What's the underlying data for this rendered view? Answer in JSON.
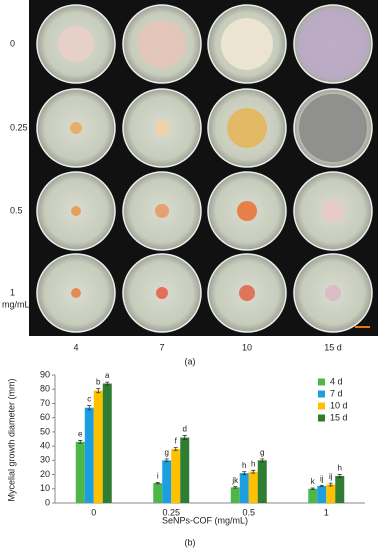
{
  "panel_a": {
    "row_labels": [
      "0",
      "0.25",
      "0.5",
      "1"
    ],
    "row_unit": "mg/mL",
    "column_labels": [
      "4",
      "7",
      "10",
      "15 d"
    ],
    "caption": "(a)"
  },
  "chart_data": {
    "type": "bar",
    "caption": "(b)",
    "x_label": "SeNPs-COF (mg/mL)",
    "y_label": "Mycelial growth diameter (mm)",
    "categories": [
      "0",
      "0.25",
      "0.5",
      "1"
    ],
    "series": [
      {
        "name": "4 d",
        "color": "#4db848",
        "values": [
          43,
          14,
          11,
          10
        ],
        "errors": [
          1,
          0.5,
          0.5,
          0.5
        ],
        "labels": [
          "e",
          "i",
          "jk",
          "k"
        ]
      },
      {
        "name": "7 d",
        "color": "#1c9fe0",
        "values": [
          67,
          30,
          21,
          12
        ],
        "errors": [
          1.5,
          1,
          1,
          0.5
        ],
        "labels": [
          "c",
          "g",
          "h",
          "ij"
        ]
      },
      {
        "name": "10 d",
        "color": "#ffc000",
        "values": [
          79,
          38,
          22,
          13
        ],
        "errors": [
          1.5,
          1,
          1,
          1
        ],
        "labels": [
          "b",
          "f",
          "h",
          "ij"
        ]
      },
      {
        "name": "15 d",
        "color": "#2e7d32",
        "values": [
          84,
          46,
          30,
          19
        ],
        "errors": [
          1,
          1.5,
          1,
          1
        ],
        "labels": [
          "a",
          "d",
          "g",
          "h"
        ]
      }
    ],
    "ylim": [
      0,
      90
    ],
    "yticks": [
      0,
      10,
      20,
      30,
      40,
      50,
      60,
      70,
      80,
      90
    ],
    "legend": "upper right"
  }
}
